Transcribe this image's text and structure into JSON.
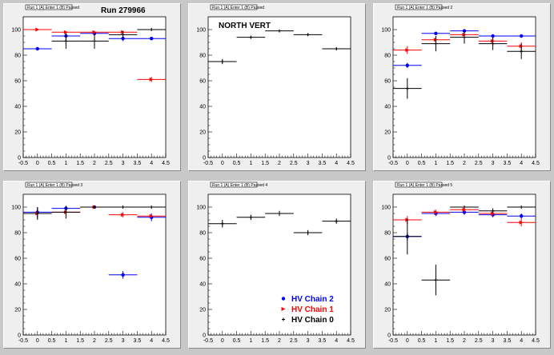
{
  "colors": {
    "hv_chain_2": "#0000ff",
    "hv_chain_1": "#ff0000",
    "hv_chain_0": "#000000"
  },
  "chart_data": [
    {
      "type": "scatter",
      "title_box": "Run 1 (A) Enter 1 (B) Passed",
      "annotation": "Run 279966",
      "xlim": [
        -0.5,
        4.5
      ],
      "ylim": [
        0,
        110
      ],
      "x_ticks": [
        "-0.5",
        "0",
        "0.5",
        "1",
        "1.5",
        "2",
        "2.5",
        "3",
        "3.5",
        "4",
        "4.5"
      ],
      "y_ticks": [
        "0",
        "20",
        "40",
        "60",
        "80",
        "100"
      ],
      "series": [
        {
          "color_key": "hv_chain_2",
          "marker": "circle",
          "points": [
            {
              "x": 0,
              "y": 85,
              "yerr": 0
            },
            {
              "x": 1,
              "y": 95,
              "yerr": 3
            },
            {
              "x": 2,
              "y": 97,
              "yerr": 2
            },
            {
              "x": 3,
              "y": 93,
              "yerr": 2
            },
            {
              "x": 4,
              "y": 93,
              "yerr": 1
            }
          ]
        },
        {
          "color_key": "hv_chain_1",
          "marker": "triangle",
          "points": [
            {
              "x": 0,
              "y": 100,
              "yerr": 0
            },
            {
              "x": 1,
              "y": 98,
              "yerr": 0
            },
            {
              "x": 2,
              "y": 98,
              "yerr": 0
            },
            {
              "x": 3,
              "y": 98,
              "yerr": 0
            },
            {
              "x": 4,
              "y": 61,
              "yerr": 2
            }
          ]
        },
        {
          "color_key": "hv_chain_0",
          "marker": "plus",
          "points": [
            {
              "x": 1,
              "y": 91,
              "yerr": 6
            },
            {
              "x": 2,
              "y": 91,
              "yerr": 6
            },
            {
              "x": 3,
              "y": 96,
              "yerr": 3
            },
            {
              "x": 4,
              "y": 100,
              "yerr": 0
            }
          ]
        }
      ]
    },
    {
      "type": "scatter",
      "title_box": "Run 1 (A) Enter 1 (B) Passed",
      "annotation": "NORTH VERT",
      "xlim": [
        -0.5,
        4.5
      ],
      "ylim": [
        0,
        110
      ],
      "x_ticks": [
        "-0.5",
        "0",
        "0.5",
        "1",
        "1.5",
        "2",
        "2.5",
        "3",
        "3.5",
        "4",
        "4.5"
      ],
      "y_ticks": [
        "0",
        "20",
        "40",
        "60",
        "80",
        "100"
      ],
      "series": [
        {
          "color_key": "hv_chain_0",
          "marker": "plus",
          "points": [
            {
              "x": 0,
              "y": 75,
              "yerr": 2
            },
            {
              "x": 1,
              "y": 94,
              "yerr": 1
            },
            {
              "x": 2,
              "y": 99,
              "yerr": 1
            },
            {
              "x": 3,
              "y": 96,
              "yerr": 1
            },
            {
              "x": 4,
              "y": 85,
              "yerr": 1
            }
          ]
        }
      ]
    },
    {
      "type": "scatter",
      "title_box": "Run 1 (A) Enter 1 (B) Passed 2",
      "annotation": "",
      "xlim": [
        -0.5,
        4.5
      ],
      "ylim": [
        0,
        110
      ],
      "x_ticks": [
        "-0.5",
        "0",
        "0.5",
        "1",
        "1.5",
        "2",
        "2.5",
        "3",
        "3.5",
        "4",
        "4.5"
      ],
      "y_ticks": [
        "0",
        "20",
        "40",
        "60",
        "80",
        "100"
      ],
      "series": [
        {
          "color_key": "hv_chain_2",
          "marker": "circle",
          "points": [
            {
              "x": 0,
              "y": 72,
              "yerr": 2
            },
            {
              "x": 1,
              "y": 97,
              "yerr": 1
            },
            {
              "x": 2,
              "y": 99,
              "yerr": 1
            },
            {
              "x": 3,
              "y": 95,
              "yerr": 1
            },
            {
              "x": 4,
              "y": 95,
              "yerr": 1
            }
          ]
        },
        {
          "color_key": "hv_chain_1",
          "marker": "triangle",
          "points": [
            {
              "x": 0,
              "y": 84,
              "yerr": 3
            },
            {
              "x": 1,
              "y": 92,
              "yerr": 3
            },
            {
              "x": 2,
              "y": 96,
              "yerr": 3
            },
            {
              "x": 3,
              "y": 91,
              "yerr": 3
            },
            {
              "x": 4,
              "y": 87,
              "yerr": 3
            }
          ]
        },
        {
          "color_key": "hv_chain_0",
          "marker": "plus",
          "points": [
            {
              "x": 0,
              "y": 54,
              "yerr": 8
            },
            {
              "x": 1,
              "y": 89,
              "yerr": 6
            },
            {
              "x": 2,
              "y": 94,
              "yerr": 5
            },
            {
              "x": 3,
              "y": 89,
              "yerr": 5
            },
            {
              "x": 4,
              "y": 83,
              "yerr": 6
            }
          ]
        }
      ]
    },
    {
      "type": "scatter",
      "title_box": "Run 1 (A) Enter 1 (B) Passed 3",
      "annotation": "",
      "xlim": [
        -0.5,
        4.5
      ],
      "ylim": [
        0,
        110
      ],
      "x_ticks": [
        "-0.5",
        "0",
        "0.5",
        "1",
        "1.5",
        "2",
        "2.5",
        "3",
        "3.5",
        "4",
        "4.5"
      ],
      "y_ticks": [
        "0",
        "20",
        "40",
        "60",
        "80",
        "100"
      ],
      "series": [
        {
          "color_key": "hv_chain_2",
          "marker": "circle",
          "points": [
            {
              "x": 0,
              "y": 96,
              "yerr": 4
            },
            {
              "x": 1,
              "y": 99,
              "yerr": 1
            },
            {
              "x": 2,
              "y": 100,
              "yerr": 1
            },
            {
              "x": 3,
              "y": 47,
              "yerr": 3
            },
            {
              "x": 4,
              "y": 92,
              "yerr": 3
            }
          ]
        },
        {
          "color_key": "hv_chain_1",
          "marker": "triangle",
          "points": [
            {
              "x": 0,
              "y": 95,
              "yerr": 4
            },
            {
              "x": 1,
              "y": 96,
              "yerr": 2
            },
            {
              "x": 2,
              "y": 100,
              "yerr": 0
            },
            {
              "x": 3,
              "y": 94,
              "yerr": 2
            },
            {
              "x": 4,
              "y": 93,
              "yerr": 1
            }
          ]
        },
        {
          "color_key": "hv_chain_0",
          "marker": "plus",
          "points": [
            {
              "x": 0,
              "y": 95,
              "yerr": 5
            },
            {
              "x": 1,
              "y": 96,
              "yerr": 5
            },
            {
              "x": 2,
              "y": 100,
              "yerr": 0
            },
            {
              "x": 3,
              "y": 100,
              "yerr": 0
            },
            {
              "x": 4,
              "y": 100,
              "yerr": 0
            }
          ]
        }
      ]
    },
    {
      "type": "scatter",
      "title_box": "Run 1 (A) Enter 1 (B) Passed 4",
      "annotation": "",
      "legend": [
        {
          "label": "HV Chain 2",
          "color_key": "hv_chain_2",
          "marker": "circle"
        },
        {
          "label": "HV Chain 1",
          "color_key": "hv_chain_1",
          "marker": "triangle"
        },
        {
          "label": "HV Chain 0",
          "color_key": "hv_chain_0",
          "marker": "plus"
        }
      ],
      "legend_position": "bottom-right",
      "xlim": [
        -0.5,
        4.5
      ],
      "ylim": [
        0,
        110
      ],
      "x_ticks": [
        "-0.5",
        "0",
        "0.5",
        "1",
        "1.5",
        "2",
        "2.5",
        "3",
        "3.5",
        "4",
        "4.5"
      ],
      "y_ticks": [
        "0",
        "20",
        "40",
        "60",
        "80",
        "100"
      ],
      "series": [
        {
          "color_key": "hv_chain_0",
          "marker": "plus",
          "points": [
            {
              "x": 0,
              "y": 87,
              "yerr": 3
            },
            {
              "x": 1,
              "y": 92,
              "yerr": 2
            },
            {
              "x": 2,
              "y": 95,
              "yerr": 2
            },
            {
              "x": 3,
              "y": 80,
              "yerr": 2
            },
            {
              "x": 4,
              "y": 89,
              "yerr": 2
            }
          ]
        }
      ]
    },
    {
      "type": "scatter",
      "title_box": "Run 1 (A) Enter 1 (B) Passed 5",
      "annotation": "",
      "xlim": [
        -0.5,
        4.5
      ],
      "ylim": [
        0,
        110
      ],
      "x_ticks": [
        "-0.5",
        "0",
        "0.5",
        "1",
        "1.5",
        "2",
        "2.5",
        "3",
        "3.5",
        "4",
        "4.5"
      ],
      "y_ticks": [
        "0",
        "20",
        "40",
        "60",
        "80",
        "100"
      ],
      "series": [
        {
          "color_key": "hv_chain_2",
          "marker": "circle",
          "points": [
            {
              "x": 0,
              "y": 77,
              "yerr": 3
            },
            {
              "x": 1,
              "y": 95,
              "yerr": 2
            },
            {
              "x": 2,
              "y": 96,
              "yerr": 2
            },
            {
              "x": 3,
              "y": 94,
              "yerr": 2
            },
            {
              "x": 4,
              "y": 93,
              "yerr": 2
            }
          ]
        },
        {
          "color_key": "hv_chain_1",
          "marker": "triangle",
          "points": [
            {
              "x": 0,
              "y": 90,
              "yerr": 3
            },
            {
              "x": 1,
              "y": 96,
              "yerr": 2
            },
            {
              "x": 2,
              "y": 98,
              "yerr": 2
            },
            {
              "x": 3,
              "y": 95,
              "yerr": 2
            },
            {
              "x": 4,
              "y": 88,
              "yerr": 3
            }
          ]
        },
        {
          "color_key": "hv_chain_0",
          "marker": "plus",
          "points": [
            {
              "x": 0,
              "y": 77,
              "yerr": 14
            },
            {
              "x": 1,
              "y": 43,
              "yerr": 12
            },
            {
              "x": 2,
              "y": 100,
              "yerr": 0
            },
            {
              "x": 3,
              "y": 97,
              "yerr": 2
            },
            {
              "x": 4,
              "y": 100,
              "yerr": 0
            }
          ]
        }
      ]
    }
  ]
}
